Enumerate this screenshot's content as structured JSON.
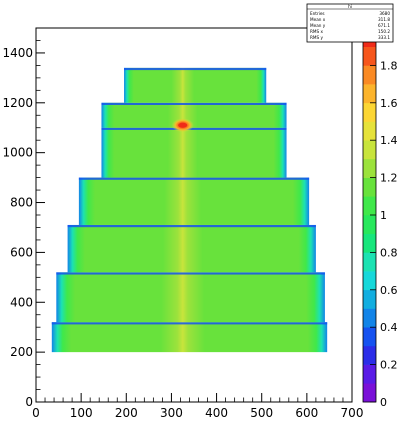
{
  "chart_data": {
    "type": "heatmap",
    "title": "",
    "xlabel": "",
    "ylabel": "",
    "xlim": [
      0,
      700
    ],
    "ylim": [
      0,
      1500
    ],
    "zlim": [
      0,
      2.0
    ],
    "x_ticks": [
      0,
      100,
      200,
      300,
      400,
      500,
      600,
      700
    ],
    "y_ticks": [
      0,
      200,
      400,
      600,
      800,
      1000,
      1200,
      1400
    ],
    "z_ticks": [
      0,
      0.2,
      0.4,
      0.6,
      0.8,
      1,
      1.2,
      1.4,
      1.6,
      1.8
    ],
    "z_tick_labels": [
      "0",
      "0.2",
      "0.4",
      "0.6",
      "0.8",
      "1",
      "1.2",
      "1.4",
      "1.6",
      "1.8"
    ],
    "palette": [
      "#7a10d8",
      "#5a1be6",
      "#2c2de8",
      "#1652f0",
      "#1284e8",
      "#12aee0",
      "#16d8da",
      "#1ce2b2",
      "#18e67c",
      "#28e85c",
      "#40e84a",
      "#68e23c",
      "#9ce23c",
      "#c8e43c",
      "#e6e23a",
      "#fcd634",
      "#fcb42c",
      "#fa8a24",
      "#f6561c",
      "#f02a18"
    ],
    "bands": [
      {
        "y_min": 200,
        "y_max": 320,
        "x_left": 35,
        "x_right": 645,
        "level": 1.1
      },
      {
        "y_min": 320,
        "y_max": 520,
        "x_left": 45,
        "x_right": 640,
        "level": 1.12
      },
      {
        "y_min": 520,
        "y_max": 710,
        "x_left": 70,
        "x_right": 620,
        "level": 1.14
      },
      {
        "y_min": 710,
        "y_max": 900,
        "x_left": 95,
        "x_right": 605,
        "level": 1.14
      },
      {
        "y_min": 900,
        "y_max": 1100,
        "x_left": 145,
        "x_right": 555,
        "level": 1.14
      },
      {
        "y_min": 1100,
        "y_max": 1200,
        "x_left": 145,
        "x_right": 555,
        "level": 1.12
      },
      {
        "y_min": 1200,
        "y_max": 1340,
        "x_left": 195,
        "x_right": 510,
        "level": 1.12
      }
    ],
    "hotspot": {
      "x": 325,
      "y": 1110,
      "level": 2.0
    },
    "stats": {
      "name": "hi",
      "rows": [
        {
          "label": "Entries",
          "value": "3680"
        },
        {
          "label": "Mean x",
          "value": "311.8"
        },
        {
          "label": "Mean y",
          "value": "671.1"
        },
        {
          "label": "RMS x",
          "value": "150.2"
        },
        {
          "label": "RMS y",
          "value": "333.1"
        }
      ]
    }
  }
}
